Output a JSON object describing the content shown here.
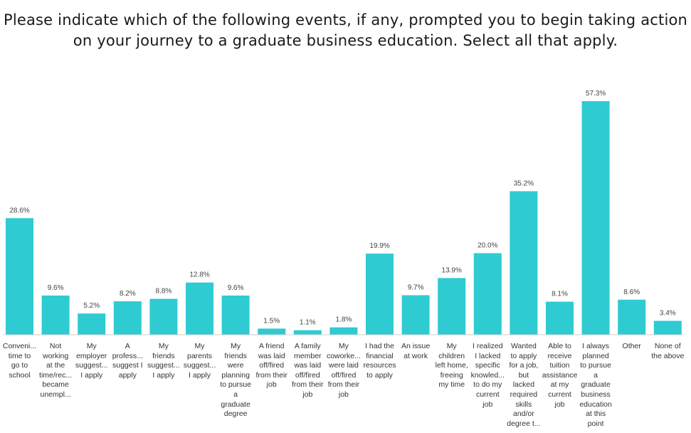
{
  "chart_data": {
    "type": "bar",
    "title_lines": [
      "Please indicate which of the following events, if any, prompted you to begin taking action",
      "on your journey to a graduate business education. Select all that apply."
    ],
    "bar_color": "#2ecbd3",
    "ylim": [
      0,
      57.3
    ],
    "grid": false,
    "legend": "none",
    "categories": [
      [
        "Conveni...",
        "time to",
        "go to",
        "school"
      ],
      [
        "Not",
        "working",
        "at the",
        "time/rec...",
        "became",
        "unempl..."
      ],
      [
        "My",
        "employer",
        "suggest...",
        "I apply"
      ],
      [
        "A",
        "profess...",
        "suggest I",
        "apply"
      ],
      [
        "My",
        "friends",
        "suggest...",
        "I apply"
      ],
      [
        "My",
        "parents",
        "suggest...",
        "I apply"
      ],
      [
        "My",
        "friends",
        "were",
        "planning",
        "to pursue",
        "a",
        "graduate",
        "degree"
      ],
      [
        "A friend",
        "was laid",
        "off/fired",
        "from their",
        "job"
      ],
      [
        "A family",
        "member",
        "was laid",
        "off/fired",
        "from their",
        "job"
      ],
      [
        "My",
        "coworke...",
        "were laid",
        "off/fired",
        "from their",
        "job"
      ],
      [
        "I had the",
        "financial",
        "resources",
        "to apply"
      ],
      [
        "An issue",
        "at work"
      ],
      [
        "My",
        "children",
        "left home,",
        "freeing",
        "my time"
      ],
      [
        "I realized",
        "I lacked",
        "specific",
        "knowled...",
        "to do my",
        "current",
        "job"
      ],
      [
        "Wanted",
        "to apply",
        "for a job,",
        "but",
        "lacked",
        "required",
        "skills",
        "and/or",
        "degree t..."
      ],
      [
        "Able to",
        "receive",
        "tuition",
        "assistance",
        "at my",
        "current",
        "job"
      ],
      [
        "I always",
        "planned",
        "to pursue",
        "a",
        "graduate",
        "business",
        "education",
        "at this",
        "point"
      ],
      [
        "Other"
      ],
      [
        "None of",
        "the above"
      ]
    ],
    "values": [
      28.6,
      9.6,
      5.2,
      8.2,
      8.8,
      12.8,
      9.6,
      1.5,
      1.1,
      1.8,
      19.9,
      9.7,
      13.9,
      20.0,
      35.2,
      8.1,
      57.3,
      8.6,
      3.4
    ],
    "value_labels": [
      "28.6%",
      "9.6%",
      "5.2%",
      "8.2%",
      "8.8%",
      "12.8%",
      "9.6%",
      "1.5%",
      "1.1%",
      "1.8%",
      "19.9%",
      "9.7%",
      "13.9%",
      "20.0%",
      "35.2%",
      "8.1%",
      "57.3%",
      "8.6%",
      "3.4%"
    ]
  }
}
